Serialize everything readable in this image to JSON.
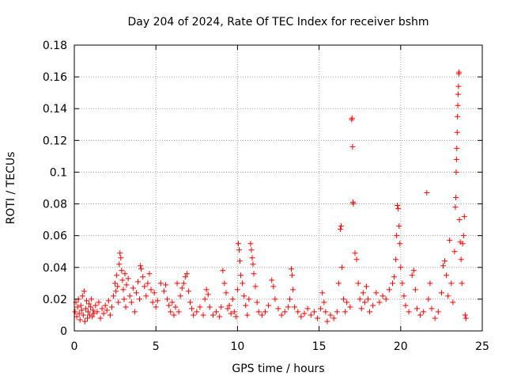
{
  "chart_data": {
    "type": "scatter",
    "title": "Day 204 of 2024, Rate Of TEC Index for receiver bshm",
    "xlabel": "GPS time / hours",
    "ylabel": "ROTI / TECUs",
    "xlim": [
      0,
      25
    ],
    "ylim": [
      0,
      0.18
    ],
    "xticks": [
      0,
      5,
      10,
      15,
      20,
      25
    ],
    "xtick_labels": [
      "0",
      "5",
      "10",
      "15",
      "20",
      "25"
    ],
    "yticks": [
      0,
      0.02,
      0.04,
      0.06,
      0.08,
      0.1,
      0.12,
      0.14,
      0.16,
      0.18
    ],
    "ytick_labels": [
      "0",
      "0.02",
      "0.04",
      "0.06",
      "0.08",
      "0.1",
      "0.12",
      "0.14",
      "0.16",
      "0.18"
    ],
    "grid": true,
    "marker": "+",
    "color": "#ff0000",
    "points": [
      [
        0.05,
        0.012
      ],
      [
        0.1,
        0.018
      ],
      [
        0.15,
        0.009
      ],
      [
        0.2,
        0.015
      ],
      [
        0.25,
        0.02
      ],
      [
        0.3,
        0.011
      ],
      [
        0.35,
        0.007
      ],
      [
        0.4,
        0.016
      ],
      [
        0.45,
        0.013
      ],
      [
        0.5,
        0.022
      ],
      [
        0.55,
        0.01
      ],
      [
        0.6,
        0.025
      ],
      [
        0.65,
        0.006
      ],
      [
        0.7,
        0.014
      ],
      [
        0.75,
        0.019
      ],
      [
        0.8,
        0.008
      ],
      [
        0.85,
        0.012
      ],
      [
        0.9,
        0.017
      ],
      [
        0.95,
        0.01
      ],
      [
        1.0,
        0.015
      ],
      [
        1.05,
        0.02
      ],
      [
        1.1,
        0.009
      ],
      [
        1.15,
        0.013
      ],
      [
        1.2,
        0.011
      ],
      [
        1.3,
        0.016
      ],
      [
        1.4,
        0.012
      ],
      [
        1.5,
        0.018
      ],
      [
        1.6,
        0.008
      ],
      [
        1.7,
        0.014
      ],
      [
        1.8,
        0.011
      ],
      [
        1.9,
        0.016
      ],
      [
        2.0,
        0.013
      ],
      [
        2.1,
        0.019
      ],
      [
        2.2,
        0.01
      ],
      [
        2.3,
        0.015
      ],
      [
        2.4,
        0.022
      ],
      [
        2.5,
        0.03
      ],
      [
        2.55,
        0.025
      ],
      [
        2.6,
        0.035
      ],
      [
        2.65,
        0.028
      ],
      [
        2.7,
        0.018
      ],
      [
        2.75,
        0.042
      ],
      [
        2.8,
        0.049
      ],
      [
        2.85,
        0.046
      ],
      [
        2.9,
        0.038
      ],
      [
        2.95,
        0.032
      ],
      [
        3.0,
        0.026
      ],
      [
        3.05,
        0.02
      ],
      [
        3.1,
        0.036
      ],
      [
        3.15,
        0.015
      ],
      [
        3.2,
        0.029
      ],
      [
        3.3,
        0.033
      ],
      [
        3.4,
        0.022
      ],
      [
        3.5,
        0.018
      ],
      [
        3.6,
        0.027
      ],
      [
        3.7,
        0.012
      ],
      [
        3.8,
        0.024
      ],
      [
        3.9,
        0.031
      ],
      [
        4.0,
        0.02
      ],
      [
        4.05,
        0.041
      ],
      [
        4.1,
        0.039
      ],
      [
        4.2,
        0.034
      ],
      [
        4.3,
        0.028
      ],
      [
        4.4,
        0.022
      ],
      [
        4.5,
        0.03
      ],
      [
        4.6,
        0.036
      ],
      [
        4.7,
        0.026
      ],
      [
        4.8,
        0.018
      ],
      [
        4.9,
        0.024
      ],
      [
        5.0,
        0.015
      ],
      [
        5.1,
        0.019
      ],
      [
        5.3,
        0.03
      ],
      [
        5.5,
        0.025
      ],
      [
        5.6,
        0.029
      ],
      [
        5.7,
        0.02
      ],
      [
        5.8,
        0.016
      ],
      [
        5.9,
        0.012
      ],
      [
        6.0,
        0.018
      ],
      [
        6.1,
        0.01
      ],
      [
        6.2,
        0.015
      ],
      [
        6.3,
        0.03
      ],
      [
        6.4,
        0.012
      ],
      [
        6.5,
        0.022
      ],
      [
        6.6,
        0.027
      ],
      [
        6.7,
        0.03
      ],
      [
        6.8,
        0.034
      ],
      [
        6.9,
        0.036
      ],
      [
        7.0,
        0.025
      ],
      [
        7.1,
        0.018
      ],
      [
        7.2,
        0.014
      ],
      [
        7.3,
        0.01
      ],
      [
        7.5,
        0.012
      ],
      [
        7.7,
        0.015
      ],
      [
        7.9,
        0.01
      ],
      [
        8.0,
        0.02
      ],
      [
        8.1,
        0.026
      ],
      [
        8.2,
        0.023
      ],
      [
        8.3,
        0.015
      ],
      [
        8.5,
        0.01
      ],
      [
        8.7,
        0.012
      ],
      [
        8.9,
        0.009
      ],
      [
        9.0,
        0.015
      ],
      [
        9.1,
        0.038
      ],
      [
        9.2,
        0.03
      ],
      [
        9.3,
        0.024
      ],
      [
        9.4,
        0.014
      ],
      [
        9.5,
        0.016
      ],
      [
        9.6,
        0.011
      ],
      [
        9.7,
        0.02
      ],
      [
        9.8,
        0.012
      ],
      [
        9.9,
        0.009
      ],
      [
        10.0,
        0.026
      ],
      [
        10.05,
        0.055
      ],
      [
        10.1,
        0.051
      ],
      [
        10.15,
        0.044
      ],
      [
        10.2,
        0.035
      ],
      [
        10.3,
        0.03
      ],
      [
        10.4,
        0.022
      ],
      [
        10.5,
        0.016
      ],
      [
        10.6,
        0.01
      ],
      [
        10.7,
        0.02
      ],
      [
        10.8,
        0.055
      ],
      [
        10.85,
        0.051
      ],
      [
        10.9,
        0.046
      ],
      [
        10.95,
        0.042
      ],
      [
        11.0,
        0.036
      ],
      [
        11.1,
        0.028
      ],
      [
        11.2,
        0.018
      ],
      [
        11.3,
        0.012
      ],
      [
        11.5,
        0.01
      ],
      [
        11.7,
        0.012
      ],
      [
        11.9,
        0.016
      ],
      [
        12.1,
        0.032
      ],
      [
        12.2,
        0.028
      ],
      [
        12.3,
        0.02
      ],
      [
        12.5,
        0.014
      ],
      [
        12.7,
        0.01
      ],
      [
        12.9,
        0.012
      ],
      [
        13.1,
        0.015
      ],
      [
        13.2,
        0.02
      ],
      [
        13.3,
        0.039
      ],
      [
        13.35,
        0.035
      ],
      [
        13.4,
        0.026
      ],
      [
        13.5,
        0.015
      ],
      [
        13.7,
        0.012
      ],
      [
        13.9,
        0.009
      ],
      [
        14.1,
        0.011
      ],
      [
        14.3,
        0.014
      ],
      [
        14.5,
        0.01
      ],
      [
        14.7,
        0.012
      ],
      [
        14.9,
        0.008
      ],
      [
        15.1,
        0.014
      ],
      [
        15.2,
        0.024
      ],
      [
        15.3,
        0.018
      ],
      [
        15.4,
        0.012
      ],
      [
        15.5,
        0.006
      ],
      [
        15.7,
        0.01
      ],
      [
        15.9,
        0.008
      ],
      [
        16.1,
        0.012
      ],
      [
        16.2,
        0.03
      ],
      [
        16.3,
        0.064
      ],
      [
        16.35,
        0.066
      ],
      [
        16.4,
        0.04
      ],
      [
        16.5,
        0.02
      ],
      [
        16.6,
        0.012
      ],
      [
        16.7,
        0.018
      ],
      [
        16.9,
        0.015
      ],
      [
        17.0,
        0.133
      ],
      [
        17.02,
        0.134
      ],
      [
        17.05,
        0.116
      ],
      [
        17.08,
        0.081
      ],
      [
        17.1,
        0.08
      ],
      [
        17.2,
        0.049
      ],
      [
        17.3,
        0.045
      ],
      [
        17.4,
        0.03
      ],
      [
        17.5,
        0.02
      ],
      [
        17.6,
        0.014
      ],
      [
        17.7,
        0.024
      ],
      [
        17.8,
        0.018
      ],
      [
        17.9,
        0.028
      ],
      [
        18.0,
        0.02
      ],
      [
        18.1,
        0.012
      ],
      [
        18.3,
        0.016
      ],
      [
        18.5,
        0.024
      ],
      [
        18.7,
        0.018
      ],
      [
        18.9,
        0.022
      ],
      [
        19.1,
        0.02
      ],
      [
        19.3,
        0.026
      ],
      [
        19.5,
        0.03
      ],
      [
        19.6,
        0.034
      ],
      [
        19.7,
        0.045
      ],
      [
        19.75,
        0.06
      ],
      [
        19.8,
        0.079
      ],
      [
        19.85,
        0.077
      ],
      [
        19.9,
        0.066
      ],
      [
        19.95,
        0.055
      ],
      [
        20.0,
        0.04
      ],
      [
        20.1,
        0.03
      ],
      [
        20.2,
        0.022
      ],
      [
        20.3,
        0.016
      ],
      [
        20.5,
        0.012
      ],
      [
        20.7,
        0.035
      ],
      [
        20.8,
        0.038
      ],
      [
        20.9,
        0.026
      ],
      [
        21.0,
        0.014
      ],
      [
        21.2,
        0.01
      ],
      [
        21.4,
        0.012
      ],
      [
        21.6,
        0.087
      ],
      [
        21.7,
        0.02
      ],
      [
        21.8,
        0.03
      ],
      [
        21.9,
        0.014
      ],
      [
        22.1,
        0.008
      ],
      [
        22.3,
        0.012
      ],
      [
        22.5,
        0.024
      ],
      [
        22.6,
        0.041
      ],
      [
        22.7,
        0.044
      ],
      [
        22.8,
        0.035
      ],
      [
        22.9,
        0.022
      ],
      [
        23.0,
        0.057
      ],
      [
        23.1,
        0.03
      ],
      [
        23.2,
        0.018
      ],
      [
        23.3,
        0.05
      ],
      [
        23.35,
        0.078
      ],
      [
        23.38,
        0.084
      ],
      [
        23.4,
        0.1
      ],
      [
        23.42,
        0.108
      ],
      [
        23.44,
        0.115
      ],
      [
        23.46,
        0.125
      ],
      [
        23.48,
        0.135
      ],
      [
        23.5,
        0.142
      ],
      [
        23.52,
        0.149
      ],
      [
        23.54,
        0.154
      ],
      [
        23.56,
        0.162
      ],
      [
        23.58,
        0.163
      ],
      [
        23.6,
        0.07
      ],
      [
        23.65,
        0.056
      ],
      [
        23.7,
        0.045
      ],
      [
        23.75,
        0.03
      ],
      [
        23.8,
        0.055
      ],
      [
        23.85,
        0.06
      ],
      [
        23.9,
        0.072
      ],
      [
        23.95,
        0.01
      ],
      [
        24.0,
        0.008
      ]
    ]
  }
}
